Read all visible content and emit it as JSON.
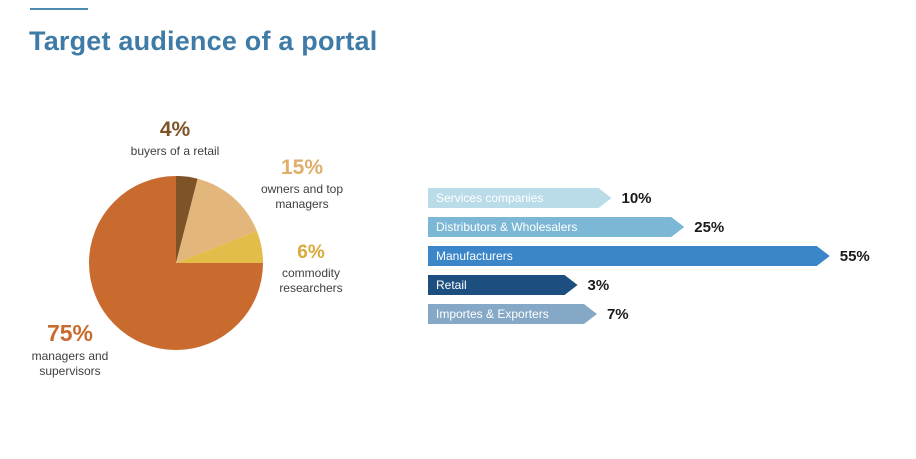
{
  "title": "Target audience of a portal",
  "chart_data": [
    {
      "type": "pie",
      "title": "Target audience of a portal",
      "start_angle_deg": -90,
      "direction": "clockwise",
      "slices": [
        {
          "label": "buyers of a retail",
          "value": 4,
          "pct_label": "4%",
          "color": "#7d5327"
        },
        {
          "label": "owners and top managers",
          "value": 15,
          "pct_label": "15%",
          "color": "#e3b67c"
        },
        {
          "label": "commodity researchers",
          "value": 6,
          "pct_label": "6%",
          "color": "#e2bd4a"
        },
        {
          "label": "managers and supervisors",
          "value": 75,
          "pct_label": "75%",
          "color": "#c96a2e"
        }
      ]
    },
    {
      "type": "bar",
      "orientation": "horizontal",
      "categories": [
        "Services companies",
        "Distributors & Wholesalers",
        "Manufacturers",
        "Retail",
        "Importes & Exporters"
      ],
      "values": [
        10,
        25,
        55,
        3,
        7
      ],
      "value_labels": [
        "10%",
        "25%",
        "55%",
        "3%",
        "7%"
      ],
      "bar_colors": [
        "#badce9",
        "#7cb8d6",
        "#3a86c8",
        "#1c4e80",
        "#85a8c6"
      ],
      "xlim": [
        0,
        60
      ],
      "grid": false,
      "legend": "none"
    }
  ]
}
